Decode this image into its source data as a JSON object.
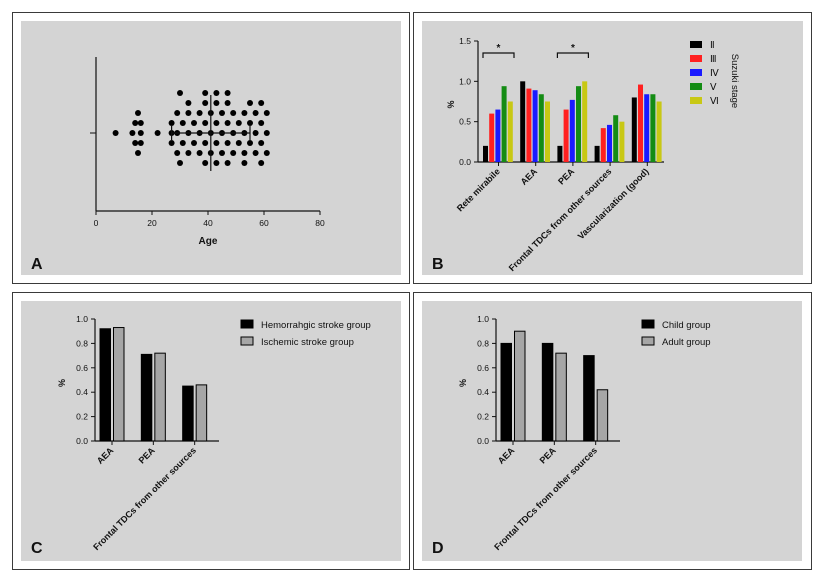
{
  "chart_data": [
    {
      "panel": "A",
      "type": "scatter",
      "xlabel": "Age",
      "xlim": [
        0,
        80
      ],
      "xticks": [
        0,
        20,
        40,
        60,
        80
      ],
      "points": [
        {
          "x": 7,
          "y": 0
        },
        {
          "x": 13,
          "y": 0
        },
        {
          "x": 16,
          "y": 0
        },
        {
          "x": 22,
          "y": 0
        },
        {
          "x": 14,
          "y": 1
        },
        {
          "x": 16,
          "y": 1
        },
        {
          "x": 14,
          "y": -1
        },
        {
          "x": 16,
          "y": -1
        },
        {
          "x": 15,
          "y": 2
        },
        {
          "x": 15,
          "y": -2
        },
        {
          "x": 27,
          "y": 0
        },
        {
          "x": 29,
          "y": 0
        },
        {
          "x": 33,
          "y": 0
        },
        {
          "x": 37,
          "y": 0
        },
        {
          "x": 41,
          "y": 0
        },
        {
          "x": 45,
          "y": 0
        },
        {
          "x": 49,
          "y": 0
        },
        {
          "x": 53,
          "y": 0
        },
        {
          "x": 57,
          "y": 0
        },
        {
          "x": 61,
          "y": 0
        },
        {
          "x": 27,
          "y": 1
        },
        {
          "x": 31,
          "y": 1
        },
        {
          "x": 35,
          "y": 1
        },
        {
          "x": 39,
          "y": 1
        },
        {
          "x": 43,
          "y": 1
        },
        {
          "x": 47,
          "y": 1
        },
        {
          "x": 51,
          "y": 1
        },
        {
          "x": 55,
          "y": 1
        },
        {
          "x": 59,
          "y": 1
        },
        {
          "x": 27,
          "y": -1
        },
        {
          "x": 31,
          "y": -1
        },
        {
          "x": 35,
          "y": -1
        },
        {
          "x": 39,
          "y": -1
        },
        {
          "x": 43,
          "y": -1
        },
        {
          "x": 47,
          "y": -1
        },
        {
          "x": 51,
          "y": -1
        },
        {
          "x": 55,
          "y": -1
        },
        {
          "x": 59,
          "y": -1
        },
        {
          "x": 29,
          "y": 2
        },
        {
          "x": 33,
          "y": 2
        },
        {
          "x": 37,
          "y": 2
        },
        {
          "x": 41,
          "y": 2
        },
        {
          "x": 45,
          "y": 2
        },
        {
          "x": 49,
          "y": 2
        },
        {
          "x": 53,
          "y": 2
        },
        {
          "x": 57,
          "y": 2
        },
        {
          "x": 61,
          "y": 2
        },
        {
          "x": 29,
          "y": -2
        },
        {
          "x": 33,
          "y": -2
        },
        {
          "x": 37,
          "y": -2
        },
        {
          "x": 41,
          "y": -2
        },
        {
          "x": 45,
          "y": -2
        },
        {
          "x": 49,
          "y": -2
        },
        {
          "x": 53,
          "y": -2
        },
        {
          "x": 57,
          "y": -2
        },
        {
          "x": 61,
          "y": -2
        },
        {
          "x": 33,
          "y": 3
        },
        {
          "x": 39,
          "y": 3
        },
        {
          "x": 43,
          "y": 3
        },
        {
          "x": 47,
          "y": 3
        },
        {
          "x": 55,
          "y": 3
        },
        {
          "x": 59,
          "y": 3
        },
        {
          "x": 30,
          "y": -3
        },
        {
          "x": 39,
          "y": -3
        },
        {
          "x": 43,
          "y": -3
        },
        {
          "x": 47,
          "y": -3
        },
        {
          "x": 53,
          "y": -3
        },
        {
          "x": 59,
          "y": -3
        },
        {
          "x": 30,
          "y": 4
        },
        {
          "x": 39,
          "y": 4
        },
        {
          "x": 43,
          "y": 4
        },
        {
          "x": 47,
          "y": 4
        }
      ],
      "mean": 41,
      "sd_range": [
        27,
        55
      ],
      "label": "A"
    },
    {
      "panel": "B",
      "type": "bar",
      "ylabel": "%",
      "ylim": [
        0,
        1.5
      ],
      "yticks": [
        "0.0",
        "0.5",
        "1.0",
        "1.5"
      ],
      "categories": [
        "Rete mirabile",
        "AEA",
        "PEA",
        "Frontal TDCs from other sources",
        "Vascularization (good)"
      ],
      "series": [
        {
          "name": "Ⅱ",
          "color": "#000000",
          "values": [
            0.2,
            1.0,
            0.2,
            0.2,
            0.8
          ]
        },
        {
          "name": "Ⅲ",
          "color": "#ff2020",
          "values": [
            0.6,
            0.91,
            0.65,
            0.42,
            0.96
          ]
        },
        {
          "name": "Ⅳ",
          "color": "#1a1aff",
          "values": [
            0.65,
            0.89,
            0.77,
            0.46,
            0.84
          ]
        },
        {
          "name": "Ⅴ",
          "color": "#148c14",
          "values": [
            0.94,
            0.84,
            0.94,
            0.58,
            0.84
          ]
        },
        {
          "name": "Ⅵ",
          "color": "#c8c814",
          "values": [
            0.75,
            0.75,
            1.0,
            0.5,
            0.75
          ]
        }
      ],
      "legend_title": "Suzuki stage",
      "legend_position": "right",
      "significance": [
        {
          "from": 0,
          "to": 0,
          "text": "*"
        },
        {
          "from": 2,
          "to": 2,
          "text": "*"
        }
      ],
      "label": "B"
    },
    {
      "panel": "C",
      "type": "bar",
      "ylabel": "%",
      "ylim": [
        0,
        1.0
      ],
      "yticks": [
        "0.0",
        "0.2",
        "0.4",
        "0.6",
        "0.8",
        "1.0"
      ],
      "categories": [
        "AEA",
        "PEA",
        "Frontal TDCs from other sources"
      ],
      "series": [
        {
          "name": "Hemorrahgic stroke group",
          "color": "#000000",
          "values": [
            0.92,
            0.71,
            0.45
          ]
        },
        {
          "name": "Ischemic stroke group",
          "color": "#a6a6a6",
          "values": [
            0.93,
            0.72,
            0.46
          ]
        }
      ],
      "legend_position": "right",
      "label": "C"
    },
    {
      "panel": "D",
      "type": "bar",
      "ylabel": "%",
      "ylim": [
        0,
        1.0
      ],
      "yticks": [
        "0.0",
        "0.2",
        "0.4",
        "0.6",
        "0.8",
        "1.0"
      ],
      "categories": [
        "AEA",
        "PEA",
        "Frontal TDCs from other sources"
      ],
      "series": [
        {
          "name": "Child group",
          "color": "#000000",
          "values": [
            0.8,
            0.8,
            0.7
          ]
        },
        {
          "name": "Adult group",
          "color": "#a6a6a6",
          "values": [
            0.9,
            0.72,
            0.42
          ]
        }
      ],
      "legend_position": "right",
      "label": "D"
    }
  ]
}
